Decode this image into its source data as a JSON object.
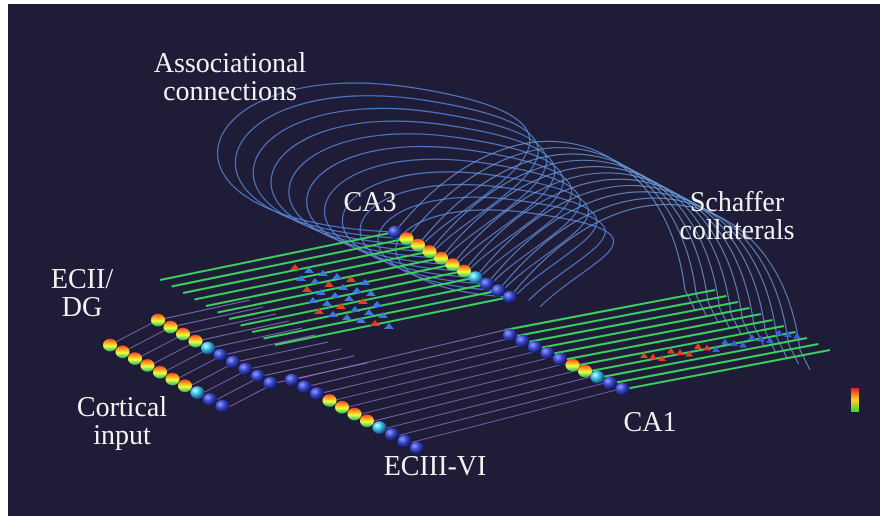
{
  "labels": [
    {
      "lines": [
        "Associational",
        "connections"
      ]
    },
    {
      "lines": [
        "CA3"
      ]
    },
    {
      "lines": [
        "Schaffer",
        "collaterals"
      ]
    },
    {
      "lines": [
        "ECII/",
        "DG"
      ]
    },
    {
      "lines": [
        "Cortical",
        "input"
      ]
    },
    {
      "lines": [
        "ECIII-VI"
      ]
    },
    {
      "lines": [
        "CA1"
      ]
    }
  ]
}
